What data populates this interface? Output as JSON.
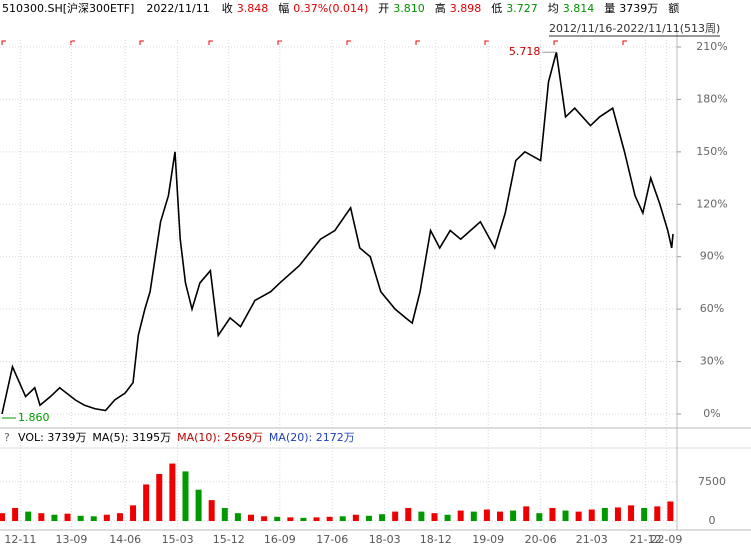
{
  "chart_data": {
    "type": "line",
    "header": {
      "symbol": "510300.SH[沪深300ETF]",
      "date": "2022/11/11",
      "items": [
        {
          "label": "收",
          "value": "3.848",
          "color": "#e00000"
        },
        {
          "label": "幅",
          "value": "0.37%(0.014)",
          "color": "#e00000"
        },
        {
          "label": "开",
          "value": "3.810",
          "color": "#009000"
        },
        {
          "label": "高",
          "value": "3.898",
          "color": "#e00000"
        },
        {
          "label": "低",
          "value": "3.727",
          "color": "#009000"
        },
        {
          "label": "均",
          "value": "3.814",
          "color": "#009000"
        },
        {
          "label": "量",
          "value": "3739万",
          "color": "#000000"
        },
        {
          "label": "额",
          "value": "",
          "color": "#000000"
        }
      ]
    },
    "range_label": "2012/11/16-2022/11/11(513周)",
    "high_label": "5.718",
    "low_label": "1.860",
    "x": [
      0,
      8,
      18,
      25,
      29,
      37,
      44,
      56,
      63,
      71,
      79,
      86,
      94,
      100,
      104,
      109,
      113,
      121,
      127,
      132,
      136,
      140,
      145,
      151,
      159,
      165,
      174,
      182,
      193,
      205,
      212,
      227,
      243,
      254,
      266,
      273,
      281,
      289,
      300,
      308,
      313,
      319,
      327,
      334,
      342,
      350,
      365,
      376,
      384,
      392,
      399,
      411,
      417,
      423,
      430,
      437,
      449,
      456,
      466,
      475,
      483,
      489,
      495,
      502,
      508,
      511,
      512
    ],
    "series": [
      {
        "name": "510300.SH",
        "color": "#000000",
        "values": [
          0,
          27,
          10,
          15,
          5,
          10,
          15,
          8,
          5,
          3,
          2,
          8,
          12,
          18,
          45,
          60,
          70,
          110,
          125,
          150,
          100,
          75,
          60,
          75,
          82,
          45,
          55,
          50,
          65,
          70,
          75,
          85,
          100,
          105,
          118,
          95,
          90,
          70,
          60,
          55,
          52,
          70,
          105,
          95,
          105,
          100,
          110,
          95,
          115,
          145,
          150,
          145,
          190,
          207,
          170,
          175,
          165,
          170,
          175,
          150,
          125,
          115,
          135,
          120,
          105,
          95,
          103
        ]
      }
    ],
    "xlim": [
      0,
      512
    ],
    "ylim": [
      0,
      210
    ],
    "xticks": [
      {
        "value": 14,
        "label": "12-11"
      },
      {
        "value": 53,
        "label": "13-09"
      },
      {
        "value": 94,
        "label": "14-06"
      },
      {
        "value": 134,
        "label": "15-03"
      },
      {
        "value": 173,
        "label": "15-12"
      },
      {
        "value": 212,
        "label": "16-09"
      },
      {
        "value": 252,
        "label": "17-06"
      },
      {
        "value": 292,
        "label": "18-03"
      },
      {
        "value": 331,
        "label": "18-12"
      },
      {
        "value": 371,
        "label": "19-09"
      },
      {
        "value": 411,
        "label": "20-06"
      },
      {
        "value": 450,
        "label": "21-03"
      },
      {
        "value": 491,
        "label": "21-12"
      },
      {
        "value": 507,
        "label": "22-09"
      }
    ],
    "yticks": [
      {
        "value": 0,
        "label": "0%"
      },
      {
        "value": 30,
        "label": "30%"
      },
      {
        "value": 60,
        "label": "60%"
      },
      {
        "value": 90,
        "label": "90%"
      },
      {
        "value": 120,
        "label": "120%"
      },
      {
        "value": 150,
        "label": "150%"
      },
      {
        "value": 180,
        "label": "180%"
      },
      {
        "value": 210,
        "label": "210%"
      }
    ],
    "grid": true,
    "volume": {
      "help": "?",
      "labels": [
        {
          "text": "VOL: 3739万",
          "color": "#000000"
        },
        {
          "text": "MA(5): 3195万",
          "color": "#000000"
        },
        {
          "text": "MA(10): 2569万",
          "color": "#c00000"
        },
        {
          "text": "MA(20): 2172万",
          "color": "#1f3fbf"
        }
      ],
      "x": [
        0,
        10,
        20,
        30,
        40,
        50,
        60,
        70,
        80,
        90,
        100,
        110,
        120,
        130,
        140,
        150,
        160,
        170,
        180,
        190,
        200,
        210,
        220,
        230,
        240,
        250,
        260,
        270,
        280,
        290,
        300,
        310,
        320,
        330,
        340,
        350,
        360,
        370,
        380,
        390,
        400,
        410,
        420,
        430,
        440,
        450,
        460,
        470,
        480,
        490,
        500,
        510
      ],
      "values": [
        1500,
        2500,
        1800,
        1500,
        1200,
        1400,
        1000,
        900,
        1200,
        1500,
        3000,
        7000,
        9000,
        11000,
        9500,
        6000,
        4000,
        2500,
        1500,
        1200,
        900,
        800,
        700,
        600,
        700,
        800,
        900,
        1200,
        1000,
        1300,
        1800,
        2500,
        1800,
        1500,
        1200,
        2000,
        1800,
        2200,
        1800,
        2000,
        2800,
        1500,
        2500,
        2000,
        1800,
        2200,
        2500,
        2600,
        3000,
        2500,
        2800,
        3739
      ],
      "colors": [
        "#e00",
        "#e00",
        "#090",
        "#e00",
        "#090",
        "#e00",
        "#090",
        "#090",
        "#e00",
        "#e00",
        "#e00",
        "#e00",
        "#e00",
        "#e00",
        "#090",
        "#090",
        "#e00",
        "#090",
        "#090",
        "#e00",
        "#e00",
        "#090",
        "#e00",
        "#090",
        "#e00",
        "#e00",
        "#090",
        "#e00",
        "#090",
        "#090",
        "#e00",
        "#e00",
        "#090",
        "#e00",
        "#090",
        "#e00",
        "#090",
        "#e00",
        "#e00",
        "#090",
        "#e00",
        "#090",
        "#e00",
        "#090",
        "#e00",
        "#e00",
        "#090",
        "#e00",
        "#e00",
        "#090",
        "#e00",
        "#e00"
      ],
      "ylim": [
        0,
        13600
      ],
      "yticks": [
        0,
        7500
      ]
    }
  }
}
